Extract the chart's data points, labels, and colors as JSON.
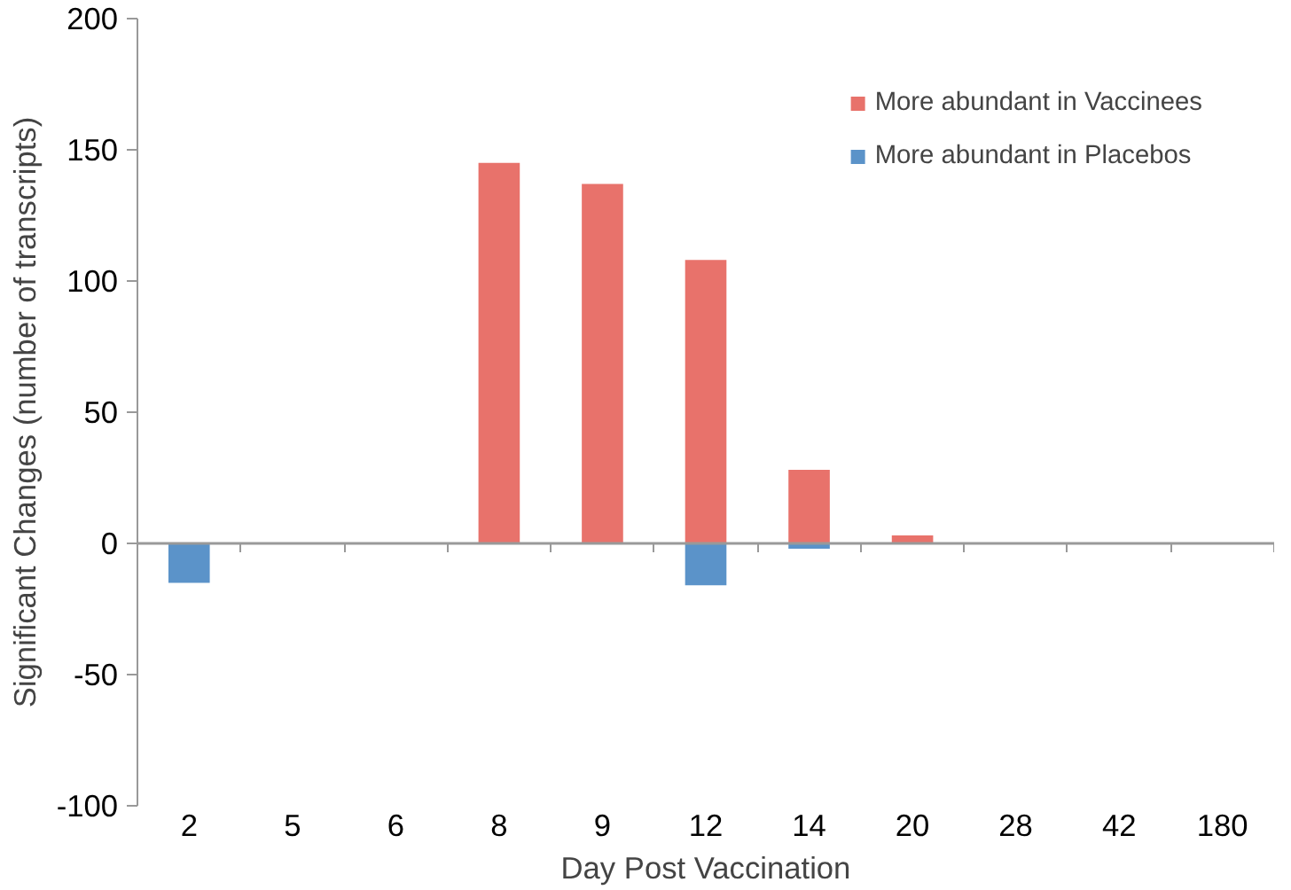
{
  "chart_data": {
    "type": "bar",
    "xlabel": "Day Post Vaccination",
    "ylabel": "Significant Changes (number of transcripts)",
    "categories": [
      "2",
      "5",
      "6",
      "8",
      "9",
      "12",
      "14",
      "20",
      "28",
      "42",
      "180"
    ],
    "series": [
      {
        "name": "More abundant in Vaccinees",
        "color": "#e8726b",
        "values": [
          0,
          0,
          0,
          145,
          137,
          108,
          28,
          3,
          0,
          0,
          0
        ]
      },
      {
        "name": "More abundant in Placebos",
        "color": "#5b93c9",
        "values": [
          -15,
          0,
          0,
          0,
          0,
          -16,
          -2,
          0,
          0,
          0,
          0
        ]
      }
    ],
    "ylim": [
      -100,
      200
    ],
    "yticks": [
      -100,
      -50,
      0,
      50,
      100,
      150,
      200
    ],
    "legend": "top right"
  }
}
